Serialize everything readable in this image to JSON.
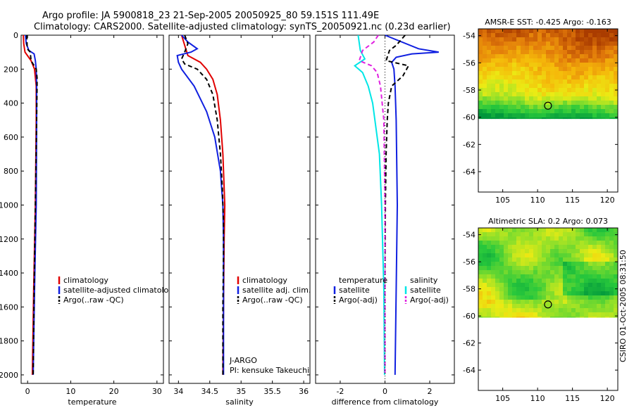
{
  "title": {
    "line1": "Argo profile: JA 5900818_23 21-Sep-2005 20050925_80 59.151S 111.49E",
    "line2": "Climatology: CARS2000. Satellite-adjusted climatology: synTS_20050921.nc (0.23d earlier)"
  },
  "side_stamp": "CSIRO 01-Oct-2005 08:31:50",
  "colors": {
    "red": "#e00000",
    "blue": "#1020e0",
    "black": "#000000",
    "cyan": "#00e6e6",
    "magenta": "#e020e0"
  },
  "chart_data": [
    {
      "id": "temperature",
      "type": "line",
      "xlabel": "temperature",
      "xlim": [
        -1.5,
        31.5
      ],
      "ylim": [
        0,
        2050
      ],
      "xticks": [
        0,
        10,
        20,
        30
      ],
      "xtick_labels": [
        "0",
        "10",
        "20",
        "30"
      ],
      "yticks": [
        0,
        200,
        400,
        600,
        800,
        1000,
        1200,
        1400,
        1600,
        1800,
        2000
      ],
      "ytick_labels": [
        "0",
        "200",
        "400",
        "600",
        "800",
        "1000",
        "1200",
        "1400",
        "1600",
        "1800",
        "2000"
      ],
      "legend": [
        "climatology",
        "satellite-adjusted climatology",
        "Argo(..raw -QC)"
      ],
      "series": [
        {
          "name": "climatology",
          "color": "red",
          "dash": "",
          "depth": [
            0,
            50,
            100,
            150,
            200,
            300,
            500,
            1000,
            1500,
            2000
          ],
          "values": [
            -1.0,
            -0.9,
            -0.6,
            0.8,
            1.6,
            2.0,
            2.0,
            1.8,
            1.4,
            1.1
          ]
        },
        {
          "name": "satellite-adjusted climatology",
          "color": "blue",
          "dash": "",
          "depth": [
            0,
            50,
            90,
            110,
            150,
            200,
            300,
            500,
            1000,
            1500,
            2000
          ],
          "values": [
            -0.5,
            -0.3,
            0.3,
            1.5,
            1.8,
            2.0,
            2.1,
            2.1,
            2.0,
            1.6,
            1.3
          ]
        },
        {
          "name": "Argo(..raw -QC)",
          "color": "black",
          "dash": "6,4",
          "depth": [
            0,
            80,
            100,
            150,
            200,
            250,
            300,
            500,
            1000,
            1500,
            2000
          ],
          "values": [
            -0.2,
            -0.1,
            0.6,
            0.8,
            2.0,
            2.2,
            2.2,
            2.1,
            1.8,
            1.5,
            1.3
          ]
        }
      ]
    },
    {
      "id": "salinity",
      "type": "line",
      "xlabel": "salinity",
      "xlim": [
        33.85,
        36.1
      ],
      "ylim": [
        0,
        2050
      ],
      "xticks": [
        34,
        34.5,
        35,
        35.5,
        36
      ],
      "xtick_labels": [
        "34",
        "34.5",
        "35",
        "35.5",
        "36"
      ],
      "legend": [
        "climatology",
        "satellite adj. clim.",
        "Argo(..raw -QC)"
      ],
      "annotation": [
        "J-ARGO",
        "PI: kensuke Takeuchi"
      ],
      "series": [
        {
          "name": "climatology",
          "color": "red",
          "dash": "",
          "depth": [
            0,
            60,
            120,
            160,
            200,
            260,
            350,
            500,
            700,
            900,
            1000,
            1200,
            1600,
            2000
          ],
          "values": [
            34.05,
            34.1,
            34.15,
            34.35,
            34.45,
            34.55,
            34.62,
            34.67,
            34.71,
            34.73,
            34.74,
            34.73,
            34.72,
            34.71
          ]
        },
        {
          "name": "satellite adj. clim.",
          "color": "blue",
          "dash": "",
          "depth": [
            0,
            40,
            80,
            100,
            120,
            160,
            200,
            300,
            450,
            600,
            800,
            1000,
            1200,
            1600,
            2000
          ],
          "values": [
            34.05,
            34.15,
            34.3,
            34.2,
            33.98,
            34.0,
            34.05,
            34.25,
            34.45,
            34.58,
            34.67,
            34.71,
            34.72,
            34.72,
            34.72
          ]
        },
        {
          "name": "Argo(..raw -QC)",
          "color": "black",
          "dash": "6,4",
          "depth": [
            0,
            50,
            100,
            140,
            170,
            200,
            260,
            350,
            500,
            700,
            900,
            1100,
            1300,
            1600,
            2000
          ],
          "values": [
            34.1,
            34.15,
            34.1,
            34.05,
            34.1,
            34.3,
            34.45,
            34.55,
            34.62,
            34.67,
            34.7,
            34.72,
            34.72,
            34.71,
            34.71
          ]
        }
      ]
    },
    {
      "id": "difference",
      "type": "line",
      "xlabel": "difference from climatology",
      "xlim": [
        -3.1,
        3.1
      ],
      "ylim": [
        0,
        2050
      ],
      "xticks": [
        -2,
        0,
        2
      ],
      "xtick_labels": [
        "-2",
        "0",
        "2"
      ],
      "legend_left_title": "temperature",
      "legend_right_title": "salinity",
      "legend_left": [
        "satellite",
        "Argo(-adj)"
      ],
      "legend_right": [
        "satellite",
        "Argo(-adj)"
      ],
      "series": [
        {
          "name": "temperature satellite",
          "color": "blue",
          "dash": "",
          "depth": [
            0,
            80,
            100,
            110,
            130,
            160,
            200,
            300,
            500,
            1000,
            1500,
            2000
          ],
          "values": [
            0.0,
            1.5,
            2.4,
            1.2,
            0.5,
            0.3,
            0.4,
            0.45,
            0.5,
            0.55,
            0.5,
            0.45
          ]
        },
        {
          "name": "temperature Argo(-adj)",
          "color": "black",
          "dash": "6,4",
          "depth": [
            0,
            60,
            90,
            150,
            180,
            240,
            300,
            400,
            500,
            700,
            1000,
            1500,
            2000
          ],
          "values": [
            0.9,
            0.5,
            0.2,
            0.05,
            1.05,
            0.8,
            0.3,
            0.15,
            0.1,
            0.05,
            0.02,
            0.0,
            0.0
          ]
        },
        {
          "name": "salinity satellite",
          "color": "cyan",
          "dash": "",
          "depth": [
            0,
            90,
            140,
            180,
            220,
            300,
            400,
            550,
            700,
            1000,
            1500,
            2000
          ],
          "values": [
            -1.2,
            -1.1,
            -0.9,
            -1.35,
            -1.0,
            -0.75,
            -0.55,
            -0.4,
            -0.25,
            -0.15,
            -0.05,
            -0.02
          ]
        },
        {
          "name": "salinity Argo(-adj)",
          "color": "magenta",
          "dash": "6,4",
          "depth": [
            0,
            40,
            90,
            150,
            180,
            220,
            300,
            500,
            1000,
            1500,
            2000
          ],
          "values": [
            -0.3,
            -0.5,
            -1.0,
            -1.15,
            -0.6,
            -0.35,
            -0.2,
            -0.05,
            0.0,
            0.0,
            0.0
          ]
        }
      ]
    },
    {
      "id": "sst_map",
      "type": "heatmap",
      "title": "AMSR-E SST: -0.425 Argo: -0.163",
      "xlim": [
        101.5,
        121.5
      ],
      "ylim": [
        -65.5,
        -53.5
      ],
      "data_lat_min": -60.1,
      "xticks": [
        105,
        110,
        115,
        120
      ],
      "yticks": [
        -54,
        -56,
        -58,
        -60,
        -62,
        -64
      ],
      "marker": {
        "lon": 111.49,
        "lat": -59.151
      }
    },
    {
      "id": "sla_map",
      "type": "heatmap",
      "title": "Altimetric SLA: 0.2 Argo: 0.073",
      "xlim": [
        101.5,
        121.5
      ],
      "ylim": [
        -65.5,
        -53.5
      ],
      "data_lat_min": -60.1,
      "xticks": [
        105,
        110,
        115,
        120
      ],
      "yticks": [
        -54,
        -56,
        -58,
        -60,
        -62,
        -64
      ],
      "marker": {
        "lon": 111.49,
        "lat": -59.151
      }
    }
  ]
}
